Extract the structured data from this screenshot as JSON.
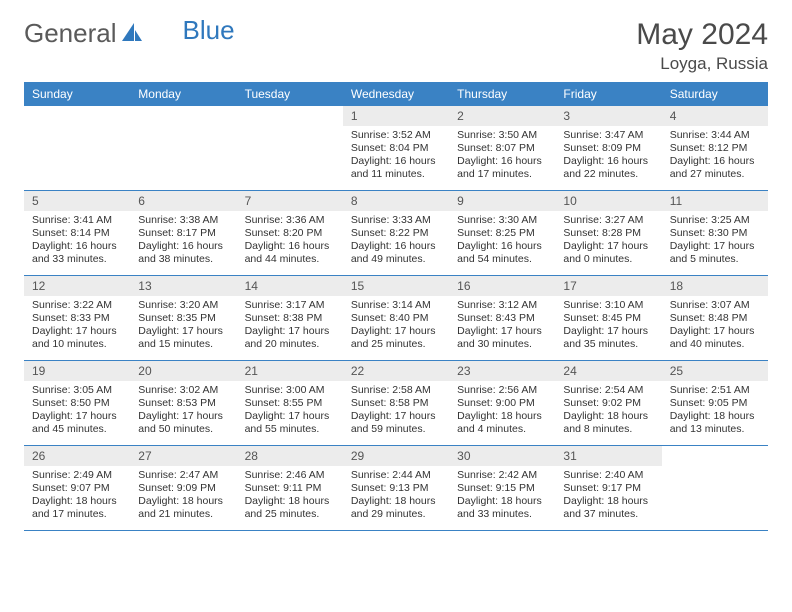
{
  "brand": {
    "part1": "General",
    "part2": "Blue"
  },
  "title": "May 2024",
  "location": "Loyga, Russia",
  "colors": {
    "header_bg": "#3a82c4",
    "header_text": "#ffffff",
    "daynum_bg": "#ececec",
    "daynum_text": "#555555",
    "body_text": "#333333",
    "rule": "#3a82c4",
    "brand_gray": "#5a5a5a",
    "brand_blue": "#2f78bd"
  },
  "dow": [
    "Sunday",
    "Monday",
    "Tuesday",
    "Wednesday",
    "Thursday",
    "Friday",
    "Saturday"
  ],
  "weeks": [
    [
      {
        "n": "",
        "sr": "",
        "ss": "",
        "dl1": "",
        "dl2": ""
      },
      {
        "n": "",
        "sr": "",
        "ss": "",
        "dl1": "",
        "dl2": ""
      },
      {
        "n": "",
        "sr": "",
        "ss": "",
        "dl1": "",
        "dl2": ""
      },
      {
        "n": "1",
        "sr": "Sunrise: 3:52 AM",
        "ss": "Sunset: 8:04 PM",
        "dl1": "Daylight: 16 hours",
        "dl2": "and 11 minutes."
      },
      {
        "n": "2",
        "sr": "Sunrise: 3:50 AM",
        "ss": "Sunset: 8:07 PM",
        "dl1": "Daylight: 16 hours",
        "dl2": "and 17 minutes."
      },
      {
        "n": "3",
        "sr": "Sunrise: 3:47 AM",
        "ss": "Sunset: 8:09 PM",
        "dl1": "Daylight: 16 hours",
        "dl2": "and 22 minutes."
      },
      {
        "n": "4",
        "sr": "Sunrise: 3:44 AM",
        "ss": "Sunset: 8:12 PM",
        "dl1": "Daylight: 16 hours",
        "dl2": "and 27 minutes."
      }
    ],
    [
      {
        "n": "5",
        "sr": "Sunrise: 3:41 AM",
        "ss": "Sunset: 8:14 PM",
        "dl1": "Daylight: 16 hours",
        "dl2": "and 33 minutes."
      },
      {
        "n": "6",
        "sr": "Sunrise: 3:38 AM",
        "ss": "Sunset: 8:17 PM",
        "dl1": "Daylight: 16 hours",
        "dl2": "and 38 minutes."
      },
      {
        "n": "7",
        "sr": "Sunrise: 3:36 AM",
        "ss": "Sunset: 8:20 PM",
        "dl1": "Daylight: 16 hours",
        "dl2": "and 44 minutes."
      },
      {
        "n": "8",
        "sr": "Sunrise: 3:33 AM",
        "ss": "Sunset: 8:22 PM",
        "dl1": "Daylight: 16 hours",
        "dl2": "and 49 minutes."
      },
      {
        "n": "9",
        "sr": "Sunrise: 3:30 AM",
        "ss": "Sunset: 8:25 PM",
        "dl1": "Daylight: 16 hours",
        "dl2": "and 54 minutes."
      },
      {
        "n": "10",
        "sr": "Sunrise: 3:27 AM",
        "ss": "Sunset: 8:28 PM",
        "dl1": "Daylight: 17 hours",
        "dl2": "and 0 minutes."
      },
      {
        "n": "11",
        "sr": "Sunrise: 3:25 AM",
        "ss": "Sunset: 8:30 PM",
        "dl1": "Daylight: 17 hours",
        "dl2": "and 5 minutes."
      }
    ],
    [
      {
        "n": "12",
        "sr": "Sunrise: 3:22 AM",
        "ss": "Sunset: 8:33 PM",
        "dl1": "Daylight: 17 hours",
        "dl2": "and 10 minutes."
      },
      {
        "n": "13",
        "sr": "Sunrise: 3:20 AM",
        "ss": "Sunset: 8:35 PM",
        "dl1": "Daylight: 17 hours",
        "dl2": "and 15 minutes."
      },
      {
        "n": "14",
        "sr": "Sunrise: 3:17 AM",
        "ss": "Sunset: 8:38 PM",
        "dl1": "Daylight: 17 hours",
        "dl2": "and 20 minutes."
      },
      {
        "n": "15",
        "sr": "Sunrise: 3:14 AM",
        "ss": "Sunset: 8:40 PM",
        "dl1": "Daylight: 17 hours",
        "dl2": "and 25 minutes."
      },
      {
        "n": "16",
        "sr": "Sunrise: 3:12 AM",
        "ss": "Sunset: 8:43 PM",
        "dl1": "Daylight: 17 hours",
        "dl2": "and 30 minutes."
      },
      {
        "n": "17",
        "sr": "Sunrise: 3:10 AM",
        "ss": "Sunset: 8:45 PM",
        "dl1": "Daylight: 17 hours",
        "dl2": "and 35 minutes."
      },
      {
        "n": "18",
        "sr": "Sunrise: 3:07 AM",
        "ss": "Sunset: 8:48 PM",
        "dl1": "Daylight: 17 hours",
        "dl2": "and 40 minutes."
      }
    ],
    [
      {
        "n": "19",
        "sr": "Sunrise: 3:05 AM",
        "ss": "Sunset: 8:50 PM",
        "dl1": "Daylight: 17 hours",
        "dl2": "and 45 minutes."
      },
      {
        "n": "20",
        "sr": "Sunrise: 3:02 AM",
        "ss": "Sunset: 8:53 PM",
        "dl1": "Daylight: 17 hours",
        "dl2": "and 50 minutes."
      },
      {
        "n": "21",
        "sr": "Sunrise: 3:00 AM",
        "ss": "Sunset: 8:55 PM",
        "dl1": "Daylight: 17 hours",
        "dl2": "and 55 minutes."
      },
      {
        "n": "22",
        "sr": "Sunrise: 2:58 AM",
        "ss": "Sunset: 8:58 PM",
        "dl1": "Daylight: 17 hours",
        "dl2": "and 59 minutes."
      },
      {
        "n": "23",
        "sr": "Sunrise: 2:56 AM",
        "ss": "Sunset: 9:00 PM",
        "dl1": "Daylight: 18 hours",
        "dl2": "and 4 minutes."
      },
      {
        "n": "24",
        "sr": "Sunrise: 2:54 AM",
        "ss": "Sunset: 9:02 PM",
        "dl1": "Daylight: 18 hours",
        "dl2": "and 8 minutes."
      },
      {
        "n": "25",
        "sr": "Sunrise: 2:51 AM",
        "ss": "Sunset: 9:05 PM",
        "dl1": "Daylight: 18 hours",
        "dl2": "and 13 minutes."
      }
    ],
    [
      {
        "n": "26",
        "sr": "Sunrise: 2:49 AM",
        "ss": "Sunset: 9:07 PM",
        "dl1": "Daylight: 18 hours",
        "dl2": "and 17 minutes."
      },
      {
        "n": "27",
        "sr": "Sunrise: 2:47 AM",
        "ss": "Sunset: 9:09 PM",
        "dl1": "Daylight: 18 hours",
        "dl2": "and 21 minutes."
      },
      {
        "n": "28",
        "sr": "Sunrise: 2:46 AM",
        "ss": "Sunset: 9:11 PM",
        "dl1": "Daylight: 18 hours",
        "dl2": "and 25 minutes."
      },
      {
        "n": "29",
        "sr": "Sunrise: 2:44 AM",
        "ss": "Sunset: 9:13 PM",
        "dl1": "Daylight: 18 hours",
        "dl2": "and 29 minutes."
      },
      {
        "n": "30",
        "sr": "Sunrise: 2:42 AM",
        "ss": "Sunset: 9:15 PM",
        "dl1": "Daylight: 18 hours",
        "dl2": "and 33 minutes."
      },
      {
        "n": "31",
        "sr": "Sunrise: 2:40 AM",
        "ss": "Sunset: 9:17 PM",
        "dl1": "Daylight: 18 hours",
        "dl2": "and 37 minutes."
      },
      {
        "n": "",
        "sr": "",
        "ss": "",
        "dl1": "",
        "dl2": ""
      }
    ]
  ]
}
